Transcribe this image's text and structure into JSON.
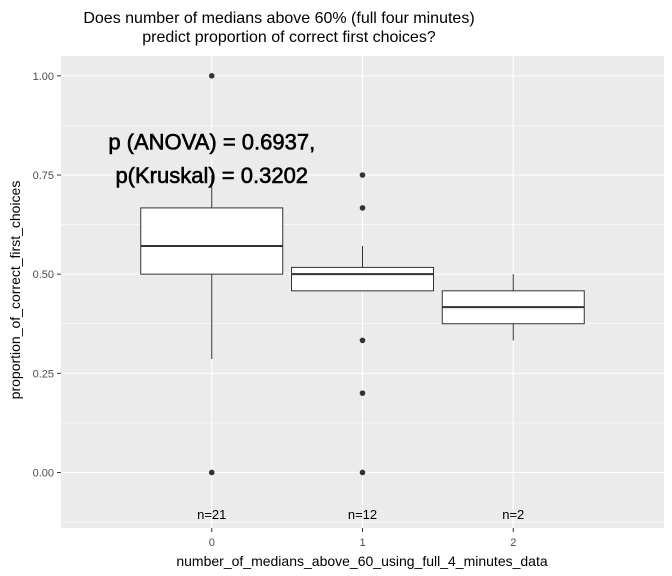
{
  "chart_data": {
    "type": "box",
    "title_lines": [
      "Does number of medians above 60% (full four minutes)",
      "predict proportion of correct first choices?"
    ],
    "xlabel": "number_of_medians_above_60_using_full_4_minutes_data",
    "ylabel": "proportion_of_correct_first_choices",
    "ylim": [
      -0.14,
      1.05
    ],
    "yticks": [
      0.0,
      0.25,
      0.5,
      0.75,
      1.0
    ],
    "ytick_labels": [
      "0.00",
      "0.25",
      "0.50",
      "0.75",
      "1.00"
    ],
    "categories": [
      "0",
      "1",
      "2"
    ],
    "boxes": [
      {
        "category": "0",
        "q1": 0.5,
        "median": 0.571,
        "q3": 0.667,
        "whisker_low": 0.286,
        "whisker_high": 0.75,
        "outliers": [
          1.0,
          0.0
        ]
      },
      {
        "category": "1",
        "q1": 0.458,
        "median": 0.5,
        "q3": 0.517,
        "whisker_low": 0.458,
        "whisker_high": 0.571,
        "outliers": [
          0.75,
          0.667,
          0.333,
          0.2,
          0.0
        ]
      },
      {
        "category": "2",
        "q1": 0.375,
        "median": 0.417,
        "q3": 0.458,
        "whisker_low": 0.333,
        "whisker_high": 0.5,
        "outliers": []
      }
    ],
    "n_labels": [
      "n=21",
      "n=12",
      "n=2"
    ],
    "n_label_y": -0.105,
    "annotation_lines": [
      "p (ANOVA) = 0.6937,",
      "p(Kruskal) = 0.3202"
    ],
    "annotation_y": [
      0.835,
      0.75
    ],
    "colors": {
      "panel": "#ebebeb",
      "grid": "#ffffff",
      "box_fill": "#ffffff",
      "box_line": "#333333",
      "point": "#333333"
    },
    "grid": true
  }
}
